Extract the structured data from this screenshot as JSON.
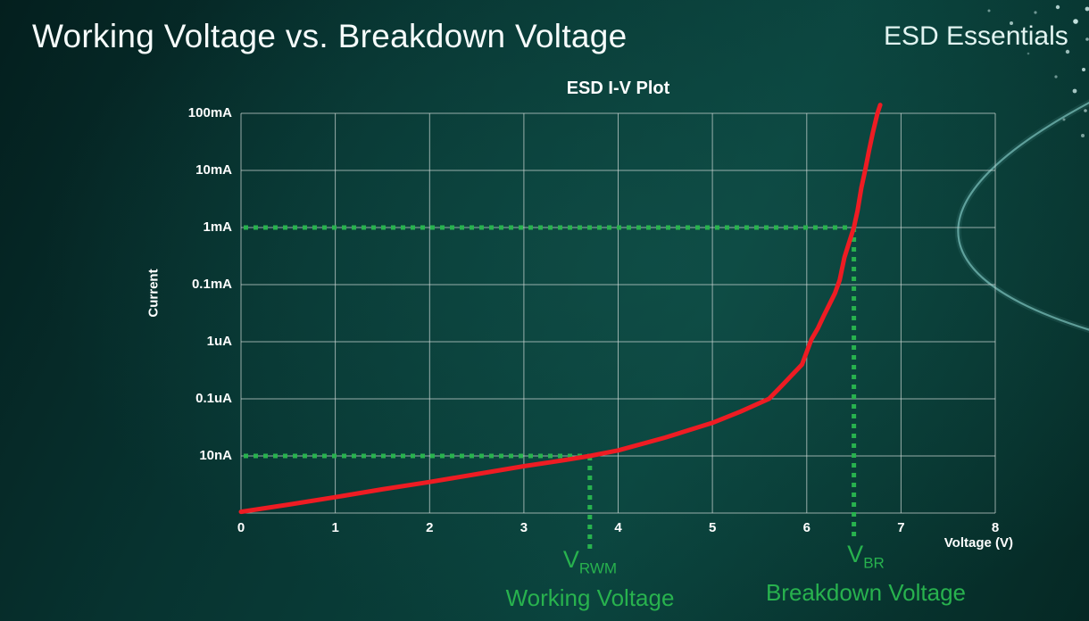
{
  "header": {
    "title": "Working Voltage vs. Breakdown Voltage",
    "brand": "ESD Essentials"
  },
  "colors": {
    "background_teal": "#083531",
    "curve_red": "#ee1c23",
    "accent_green": "#28b24e",
    "grid_gray": "#ced8d6",
    "text_white": "#ffffff"
  },
  "chart_data": {
    "type": "line",
    "title": "ESD I-V Plot",
    "xlabel": "Voltage (V)",
    "ylabel": "Current",
    "x_range": [
      0,
      8
    ],
    "y_scale": "log",
    "grid": true,
    "x_tick_labels": [
      "0",
      "1",
      "2",
      "3",
      "4",
      "5",
      "6",
      "7",
      "8"
    ],
    "y_tick_labels": [
      "100mA",
      "10mA",
      "1mA",
      "0.1mA",
      "1uA",
      "0.1uA",
      "10nA"
    ],
    "y_axis_ladder_amps": [
      0.1,
      0.01,
      0.001,
      0.0001,
      1e-06,
      1e-07,
      1e-08,
      1e-09
    ],
    "series": [
      {
        "name": "ESD device I-V curve",
        "color": "#ee1c23",
        "points": [
          [
            0,
            1.05e-09
          ],
          [
            0.5,
            1.4e-09
          ],
          [
            1,
            1.9e-09
          ],
          [
            1.5,
            2.6e-09
          ],
          [
            2,
            3.5e-09
          ],
          [
            2.5,
            4.8e-09
          ],
          [
            3,
            6.6e-09
          ],
          [
            3.4,
            8.3e-09
          ],
          [
            3.7,
            1e-08
          ],
          [
            4,
            1.25e-08
          ],
          [
            4.5,
            2.1e-08
          ],
          [
            5,
            3.8e-08
          ],
          [
            5.3,
            6e-08
          ],
          [
            5.6,
            1e-07
          ],
          [
            5.75,
            1.8e-07
          ],
          [
            5.95,
            4e-07
          ],
          [
            6.05,
            1.2e-06
          ],
          [
            6.12,
            3e-06
          ],
          [
            6.18,
            8e-06
          ],
          [
            6.24,
            2e-05
          ],
          [
            6.3,
            5e-05
          ],
          [
            6.35,
            0.00012
          ],
          [
            6.4,
            0.0003
          ],
          [
            6.45,
            0.00055
          ],
          [
            6.5,
            0.001
          ],
          [
            6.54,
            0.002
          ],
          [
            6.58,
            0.005
          ],
          [
            6.62,
            0.01
          ],
          [
            6.66,
            0.022
          ],
          [
            6.7,
            0.045
          ],
          [
            6.75,
            0.1
          ],
          [
            6.78,
            0.14
          ]
        ]
      }
    ],
    "markers": [
      {
        "symbol": "V",
        "subscript": "RWM",
        "label": "Working Voltage",
        "voltage": 3.7,
        "current": 1e-08
      },
      {
        "symbol": "V",
        "subscript": "BR",
        "label": "Breakdown Voltage",
        "voltage": 6.5,
        "current": 0.001
      }
    ]
  }
}
